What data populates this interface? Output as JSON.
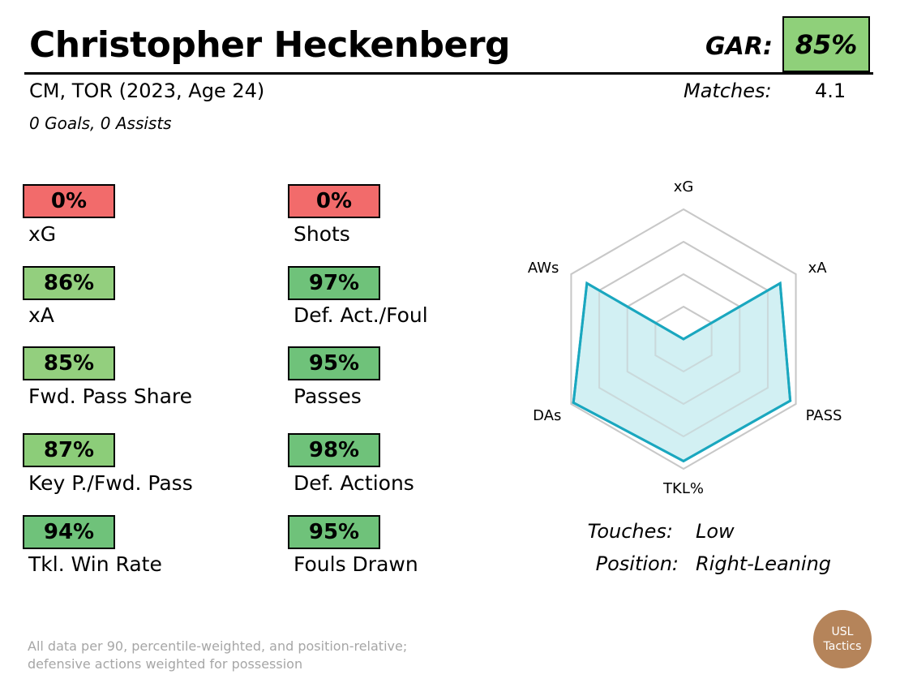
{
  "player": {
    "name": "Christopher Heckenberg",
    "subtitle": "CM, TOR (2023, Age 24)",
    "goals_assists": "0 Goals,  0 Assists"
  },
  "gar": {
    "label": "GAR:",
    "value": "85%",
    "color": "#8fd07a"
  },
  "matches": {
    "label": "Matches:",
    "value": "4.1"
  },
  "stats_left": [
    {
      "value": "0%",
      "label": "xG",
      "color": "#f26b6b"
    },
    {
      "value": "86%",
      "label": "xA",
      "color": "#93cf7e"
    },
    {
      "value": "85%",
      "label": "Fwd. Pass Share",
      "color": "#93cf7e"
    },
    {
      "value": "87%",
      "label": "Key P./Fwd. Pass",
      "color": "#8ccd79"
    },
    {
      "value": "94%",
      "label": "Tkl. Win Rate",
      "color": "#6fc27a"
    }
  ],
  "stats_right": [
    {
      "value": "0%",
      "label": "Shots",
      "color": "#f26b6b"
    },
    {
      "value": "97%",
      "label": "Def. Act./Foul",
      "color": "#6fc27a"
    },
    {
      "value": "95%",
      "label": "Passes",
      "color": "#6fc27a"
    },
    {
      "value": "98%",
      "label": "Def. Actions",
      "color": "#6fc27a"
    },
    {
      "value": "95%",
      "label": "Fouls Drawn",
      "color": "#6fc27a"
    }
  ],
  "chart_data": {
    "type": "radar",
    "axes": [
      "xG",
      "xA",
      "PASS",
      "TKL%",
      "DAs",
      "AWs"
    ],
    "values": [
      0,
      86,
      95,
      94,
      98,
      86
    ],
    "range": [
      0,
      100
    ],
    "rings": 4,
    "line_color": "#1aa7bf",
    "fill_color": "#cdeef2",
    "grid_color": "#c8c8c8"
  },
  "info": [
    {
      "label": "Touches:",
      "value": "Low"
    },
    {
      "label": "Position:",
      "value": "Right-Leaning"
    }
  ],
  "footer": {
    "line1": "All data per 90, percentile-weighted, and position-relative;",
    "line2": "defensive actions weighted for possession"
  },
  "logo": {
    "line1": "USL",
    "line2": "Tactics"
  }
}
